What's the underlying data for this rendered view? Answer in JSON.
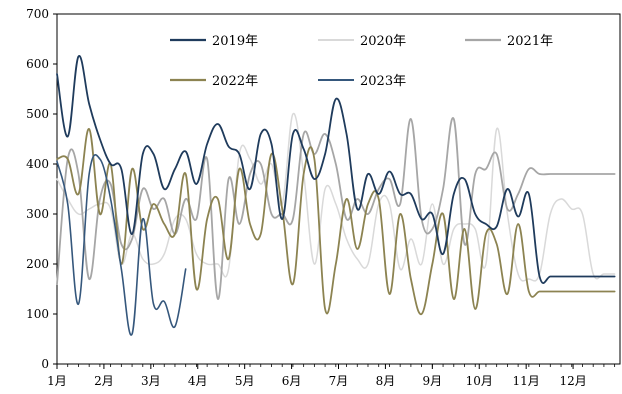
{
  "chart_data": {
    "type": "line",
    "title": "",
    "xlabel": "",
    "ylabel": "",
    "ylim": [
      0,
      700
    ],
    "yticks": [
      0,
      100,
      200,
      300,
      400,
      500,
      600,
      700
    ],
    "x_tick_labels": [
      "1月",
      "2月",
      "3月",
      "4月",
      "5月",
      "6月",
      "7月",
      "8月",
      "9月",
      "10月",
      "11月",
      "12月"
    ],
    "x_unit": "week of year (0 = start of Jan, 52 = end of Dec)",
    "x_range": [
      0,
      52.5
    ],
    "grid": false,
    "legend": {
      "placement": "top-center",
      "columns": 3
    },
    "series": [
      {
        "name": "2019年",
        "color": "#1f3b5c",
        "width": 1.8,
        "x": [
          0,
          1,
          2,
          3,
          4,
          5,
          6,
          7,
          8,
          9,
          10,
          11,
          12,
          13,
          14,
          15,
          16,
          17,
          18,
          19,
          20,
          21,
          22,
          23,
          24,
          25,
          26,
          27,
          28,
          29,
          30,
          31,
          32,
          33,
          34,
          35,
          36,
          37,
          38,
          39,
          40,
          41,
          42,
          43,
          44,
          45,
          46,
          47,
          48,
          49,
          50,
          51,
          52
        ],
        "y": [
          580,
          455,
          615,
          520,
          450,
          400,
          390,
          260,
          420,
          420,
          350,
          390,
          425,
          360,
          440,
          480,
          435,
          420,
          350,
          460,
          440,
          290,
          460,
          430,
          370,
          420,
          530,
          460,
          310,
          380,
          340,
          385,
          340,
          340,
          290,
          300,
          220,
          340,
          370,
          300,
          280,
          275,
          350,
          295,
          340,
          175,
          175,
          175,
          175,
          175,
          175,
          175,
          175
        ]
      },
      {
        "name": "2020年",
        "color": "#d9d9d9",
        "width": 1.5,
        "x": [
          0,
          1,
          2,
          3,
          4,
          5,
          6,
          7,
          8,
          9,
          10,
          11,
          12,
          13,
          14,
          15,
          16,
          17,
          18,
          19,
          20,
          21,
          22,
          23,
          24,
          25,
          26,
          27,
          28,
          29,
          30,
          31,
          32,
          33,
          34,
          35,
          36,
          37,
          38,
          39,
          40,
          41,
          42,
          43,
          44,
          45,
          46,
          47,
          48,
          49,
          50,
          51,
          52
        ],
        "y": [
          370,
          330,
          300,
          310,
          320,
          310,
          200,
          260,
          210,
          200,
          220,
          290,
          290,
          220,
          200,
          200,
          190,
          420,
          410,
          360,
          400,
          320,
          500,
          380,
          200,
          350,
          320,
          250,
          210,
          200,
          320,
          320,
          190,
          250,
          200,
          320,
          200,
          270,
          280,
          270,
          200,
          470,
          300,
          180,
          170,
          180,
          300,
          330,
          310,
          300,
          180,
          180,
          180
        ]
      },
      {
        "name": "2021年",
        "color": "#a6a6a6",
        "width": 1.8,
        "x": [
          0,
          1,
          2,
          3,
          4,
          5,
          6,
          7,
          8,
          9,
          10,
          11,
          12,
          13,
          14,
          15,
          16,
          17,
          18,
          19,
          20,
          21,
          22,
          23,
          24,
          25,
          26,
          27,
          28,
          29,
          30,
          31,
          32,
          33,
          34,
          35,
          36,
          37,
          38,
          39,
          40,
          41,
          42,
          43,
          44,
          45,
          46,
          47,
          48,
          49,
          50,
          51,
          52
        ],
        "y": [
          160,
          410,
          380,
          170,
          330,
          360,
          240,
          250,
          350,
          310,
          330,
          260,
          330,
          290,
          410,
          130,
          370,
          280,
          380,
          400,
          300,
          300,
          290,
          460,
          420,
          460,
          400,
          290,
          330,
          300,
          350,
          370,
          320,
          490,
          290,
          270,
          350,
          490,
          240,
          380,
          390,
          420,
          310,
          340,
          390,
          380,
          380,
          380,
          380,
          380,
          380,
          380,
          380
        ]
      },
      {
        "name": "2022年",
        "color": "#8c8351",
        "width": 1.8,
        "x": [
          0,
          1,
          2,
          3,
          4,
          5,
          6,
          7,
          8,
          9,
          10,
          11,
          12,
          13,
          14,
          15,
          16,
          17,
          18,
          19,
          20,
          21,
          22,
          23,
          24,
          25,
          26,
          27,
          28,
          29,
          30,
          31,
          32,
          33,
          34,
          35,
          36,
          37,
          38,
          39,
          40,
          41,
          42,
          43,
          44,
          45,
          46,
          47,
          48,
          49,
          50,
          51,
          52
        ],
        "y": [
          410,
          410,
          340,
          470,
          300,
          400,
          200,
          390,
          270,
          320,
          280,
          260,
          380,
          150,
          290,
          330,
          210,
          390,
          280,
          260,
          420,
          310,
          160,
          380,
          410,
          110,
          200,
          330,
          230,
          320,
          330,
          140,
          300,
          170,
          100,
          200,
          300,
          130,
          270,
          110,
          260,
          240,
          140,
          280,
          145,
          145,
          145,
          145,
          145,
          145,
          145,
          145,
          145
        ]
      },
      {
        "name": "2023年",
        "color": "#35577c",
        "width": 1.6,
        "x": [
          0,
          1,
          2,
          3,
          4,
          5,
          6,
          7,
          8,
          9,
          10,
          11,
          12
        ],
        "y": [
          405,
          320,
          120,
          380,
          410,
          330,
          190,
          60,
          290,
          120,
          125,
          75,
          190
        ]
      }
    ]
  }
}
